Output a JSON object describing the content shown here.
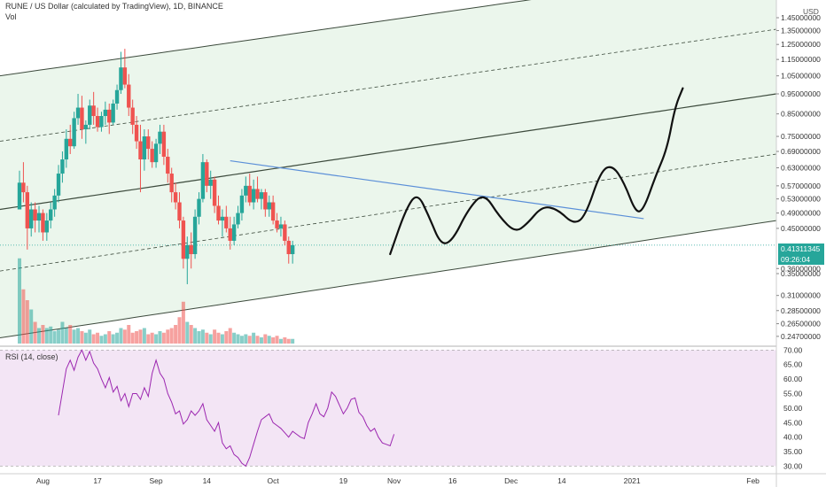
{
  "header": {
    "title": "RUNE / US Dollar (calculated by TradingView), 1D, BINANCE",
    "vol_label": "Vol",
    "rsi_label": "RSI (14, close)",
    "currency_button": "USD"
  },
  "price_tags": {
    "last_price": "0.41311345",
    "countdown": "09:26:04",
    "last_price_color": "#26a69a"
  },
  "colors": {
    "up": "#26a69a",
    "down": "#ef5350",
    "channel_fill": "#e8f5e9",
    "rsi_band": "#f3e5f5",
    "rsi_line": "#9c27b0",
    "trendline": "#5b8fd8"
  },
  "chart_data": [
    {
      "type": "candlestick",
      "title": "RUNE / US Dollar (calculated by TradingView), 1D, BINANCE",
      "scale": "log",
      "ylim": [
        0.235,
        1.6
      ],
      "price_ticks": [
        "1.45000000",
        "1.35000000",
        "1.25000000",
        "1.15000000",
        "1.05000000",
        "0.95000000",
        "0.85000000",
        "0.75000000",
        "0.69000000",
        "0.63000000",
        "0.57000000",
        "0.53000000",
        "0.49000000",
        "0.45000000",
        "0.36000000",
        "0.35000000",
        "0.31000000",
        "0.28500000",
        "0.26500000",
        "0.24700000"
      ],
      "x_ticks": [
        "Aug",
        "17",
        "Sep",
        "14",
        "Oct",
        "19",
        "Nov",
        "16",
        "Dec",
        "14",
        "2021",
        "Feb"
      ],
      "x_tick_dates": [
        "2020-08-03",
        "2020-08-17",
        "2020-09-01",
        "2020-09-14",
        "2020-10-01",
        "2020-10-19",
        "2020-11-01",
        "2020-11-16",
        "2020-12-01",
        "2020-12-14",
        "2021-01-01",
        "2021-02-01"
      ],
      "xlim": [
        "2020-07-23",
        "2021-02-07"
      ],
      "candles_start": "2020-07-28",
      "ohlc": [
        [
          0.5,
          0.62,
          0.5,
          0.58
        ],
        [
          0.58,
          0.65,
          0.52,
          0.55
        ],
        [
          0.55,
          0.57,
          0.4,
          0.45
        ],
        [
          0.45,
          0.52,
          0.43,
          0.5
        ],
        [
          0.5,
          0.52,
          0.44,
          0.47
        ],
        [
          0.47,
          0.51,
          0.44,
          0.49
        ],
        [
          0.49,
          0.5,
          0.42,
          0.44
        ],
        [
          0.44,
          0.49,
          0.42,
          0.47
        ],
        [
          0.47,
          0.52,
          0.45,
          0.5
        ],
        [
          0.5,
          0.56,
          0.48,
          0.54
        ],
        [
          0.54,
          0.64,
          0.52,
          0.61
        ],
        [
          0.61,
          0.69,
          0.58,
          0.66
        ],
        [
          0.66,
          0.78,
          0.63,
          0.74
        ],
        [
          0.74,
          0.8,
          0.68,
          0.71
        ],
        [
          0.71,
          0.86,
          0.7,
          0.83
        ],
        [
          0.83,
          0.95,
          0.8,
          0.88
        ],
        [
          0.88,
          0.94,
          0.74,
          0.78
        ],
        [
          0.78,
          0.82,
          0.72,
          0.8
        ],
        [
          0.8,
          0.92,
          0.78,
          0.89
        ],
        [
          0.89,
          0.96,
          0.8,
          0.84
        ],
        [
          0.84,
          0.88,
          0.77,
          0.79
        ],
        [
          0.79,
          0.86,
          0.77,
          0.84
        ],
        [
          0.84,
          0.91,
          0.8,
          0.87
        ],
        [
          0.87,
          0.9,
          0.76,
          0.81
        ],
        [
          0.81,
          0.92,
          0.8,
          0.9
        ],
        [
          0.9,
          1.0,
          0.87,
          0.97
        ],
        [
          0.97,
          1.2,
          0.95,
          1.1
        ],
        [
          1.1,
          1.22,
          0.98,
          1.0
        ],
        [
          1.0,
          1.06,
          0.84,
          0.88
        ],
        [
          0.88,
          0.92,
          0.76,
          0.8
        ],
        [
          0.8,
          0.84,
          0.7,
          0.73
        ],
        [
          0.73,
          0.8,
          0.55,
          0.66
        ],
        [
          0.66,
          0.78,
          0.62,
          0.75
        ],
        [
          0.75,
          0.78,
          0.66,
          0.7
        ],
        [
          0.7,
          0.73,
          0.63,
          0.65
        ],
        [
          0.65,
          0.74,
          0.63,
          0.72
        ],
        [
          0.72,
          0.8,
          0.68,
          0.77
        ],
        [
          0.77,
          0.8,
          0.64,
          0.67
        ],
        [
          0.67,
          0.7,
          0.58,
          0.61
        ],
        [
          0.61,
          0.63,
          0.52,
          0.55
        ],
        [
          0.55,
          0.58,
          0.5,
          0.52
        ],
        [
          0.52,
          0.55,
          0.45,
          0.47
        ],
        [
          0.47,
          0.48,
          0.36,
          0.38
        ],
        [
          0.38,
          0.43,
          0.33,
          0.41
        ],
        [
          0.41,
          0.44,
          0.36,
          0.39
        ],
        [
          0.39,
          0.5,
          0.38,
          0.48
        ],
        [
          0.48,
          0.55,
          0.46,
          0.53
        ],
        [
          0.53,
          0.68,
          0.52,
          0.65
        ],
        [
          0.65,
          0.66,
          0.55,
          0.57
        ],
        [
          0.57,
          0.62,
          0.53,
          0.59
        ],
        [
          0.59,
          0.6,
          0.49,
          0.51
        ],
        [
          0.51,
          0.54,
          0.46,
          0.47
        ],
        [
          0.47,
          0.5,
          0.43,
          0.48
        ],
        [
          0.48,
          0.51,
          0.44,
          0.45
        ],
        [
          0.45,
          0.48,
          0.4,
          0.42
        ],
        [
          0.42,
          0.48,
          0.41,
          0.46
        ],
        [
          0.46,
          0.51,
          0.45,
          0.49
        ],
        [
          0.49,
          0.56,
          0.47,
          0.54
        ],
        [
          0.54,
          0.6,
          0.52,
          0.57
        ],
        [
          0.57,
          0.61,
          0.51,
          0.52
        ],
        [
          0.52,
          0.59,
          0.5,
          0.56
        ],
        [
          0.56,
          0.6,
          0.52,
          0.53
        ],
        [
          0.53,
          0.56,
          0.5,
          0.55
        ],
        [
          0.55,
          0.56,
          0.48,
          0.5
        ],
        [
          0.5,
          0.54,
          0.48,
          0.52
        ],
        [
          0.52,
          0.54,
          0.46,
          0.47
        ],
        [
          0.47,
          0.49,
          0.44,
          0.45
        ],
        [
          0.45,
          0.48,
          0.43,
          0.46
        ],
        [
          0.46,
          0.47,
          0.41,
          0.42
        ],
        [
          0.42,
          0.43,
          0.37,
          0.39
        ],
        [
          0.39,
          0.42,
          0.37,
          0.41
        ]
      ],
      "volume": [
        0.55,
        0.35,
        0.28,
        0.22,
        0.14,
        0.1,
        0.12,
        0.1,
        0.11,
        0.08,
        0.09,
        0.14,
        0.1,
        0.12,
        0.09,
        0.1,
        0.08,
        0.07,
        0.09,
        0.06,
        0.07,
        0.05,
        0.06,
        0.08,
        0.06,
        0.07,
        0.1,
        0.09,
        0.12,
        0.07,
        0.08,
        0.09,
        0.1,
        0.06,
        0.07,
        0.06,
        0.08,
        0.07,
        0.09,
        0.1,
        0.12,
        0.17,
        0.27,
        0.14,
        0.12,
        0.1,
        0.08,
        0.09,
        0.07,
        0.06,
        0.09,
        0.07,
        0.06,
        0.08,
        0.1,
        0.07,
        0.06,
        0.05,
        0.06,
        0.05,
        0.07,
        0.05,
        0.04,
        0.06,
        0.05,
        0.04,
        0.05,
        0.03,
        0.04,
        0.03,
        0.03
      ],
      "drawings": {
        "channel_bands": [
          "upper",
          "middle",
          "lower"
        ],
        "descending_trendline": true,
        "projected_path": true
      }
    },
    {
      "type": "line",
      "title": "RSI (14, close)",
      "ylim": [
        28,
        71
      ],
      "y_ticks": [
        "70.00",
        "65.00",
        "60.00",
        "55.00",
        "50.00",
        "45.00",
        "40.00",
        "35.00",
        "30.00"
      ],
      "band": [
        30,
        70
      ],
      "start": "2020-08-07",
      "values": [
        47.5,
        55.5,
        63.5,
        66.5,
        63,
        67.5,
        70,
        66.5,
        69.5,
        65.5,
        63.5,
        60,
        57,
        60.5,
        55.5,
        57.5,
        52.5,
        55,
        50.5,
        55,
        55,
        53,
        57,
        54,
        62,
        66.5,
        62,
        60,
        55,
        52,
        48,
        49,
        44.5,
        46,
        49,
        47.5,
        49,
        51.5,
        46,
        44,
        42,
        45,
        38,
        36,
        37,
        34,
        33,
        31,
        30,
        33,
        37.5,
        42,
        46,
        47,
        48,
        45,
        44,
        43,
        41.5,
        40,
        42,
        41,
        40,
        39.5,
        45,
        48,
        51.5,
        48,
        47,
        50,
        55.5,
        54,
        51,
        48,
        50,
        53,
        53.5,
        48.5,
        47,
        44,
        42,
        43,
        40,
        38,
        37.5,
        37,
        41
      ]
    }
  ]
}
